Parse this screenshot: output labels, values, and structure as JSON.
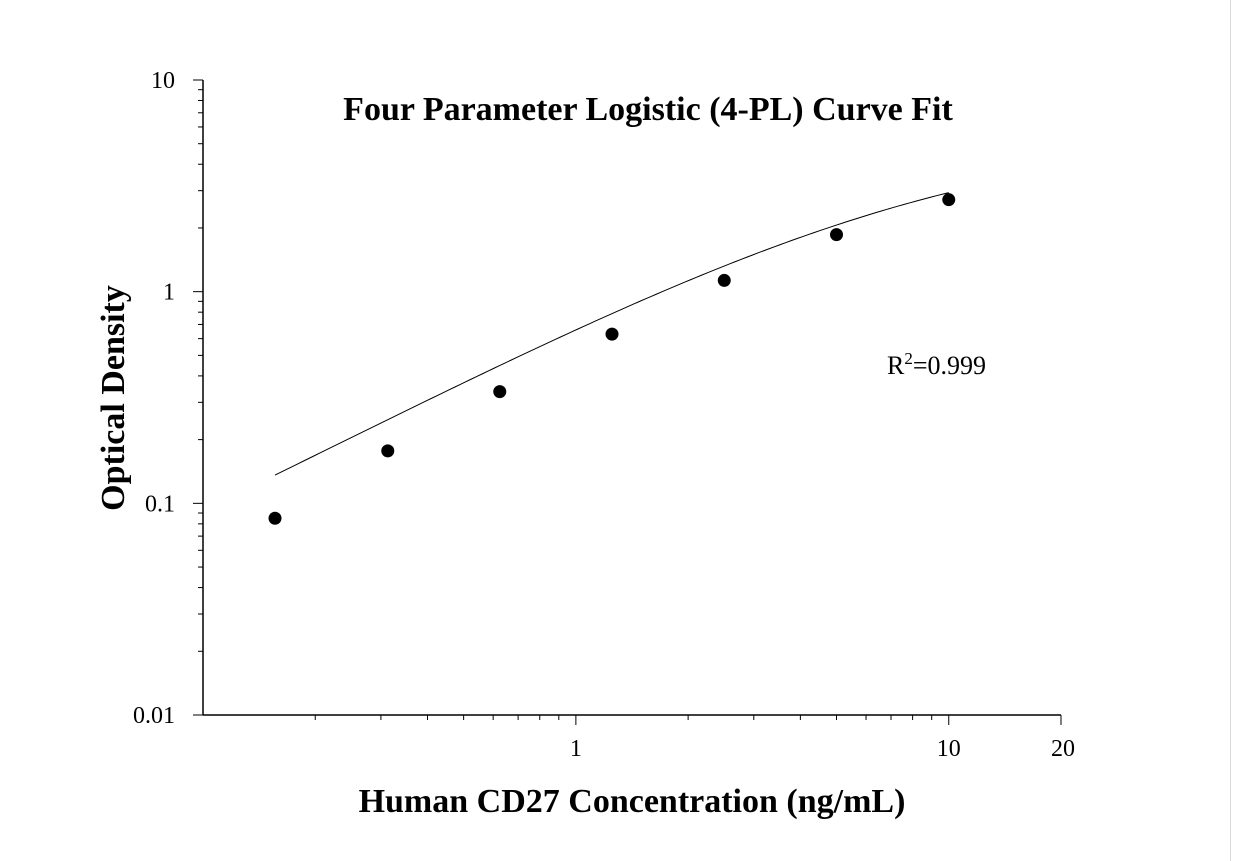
{
  "chart_data": {
    "type": "scatter",
    "title": "Four Parameter Logistic (4-PL) Curve Fit",
    "xlabel": "Human CD27 Concentration (ng/mL)",
    "ylabel": "Optical Density",
    "xscale": "log",
    "yscale": "log",
    "xlim": [
      0.1,
      20
    ],
    "ylim": [
      0.01,
      10
    ],
    "xticks": [
      {
        "value": 1,
        "label": "1"
      },
      {
        "value": 10,
        "label": "10"
      },
      {
        "value": 20,
        "label": "20"
      }
    ],
    "yticks": [
      {
        "value": 0.01,
        "label": "0.01"
      },
      {
        "value": 0.1,
        "label": "0.1"
      },
      {
        "value": 1,
        "label": "1"
      },
      {
        "value": 10,
        "label": "10"
      }
    ],
    "grid": false,
    "legend": "none",
    "points": {
      "x": [
        0.156,
        0.313,
        0.625,
        1.25,
        2.5,
        5,
        10
      ],
      "y": [
        0.085,
        0.177,
        0.337,
        0.63,
        1.13,
        1.86,
        2.72
      ]
    },
    "fit": {
      "model": "4-PL",
      "A": 0.005,
      "B": 0.92,
      "C": 9.0,
      "D": 5.6,
      "x_range": [
        0.156,
        10
      ]
    },
    "annotation": {
      "prefix": "R",
      "superscript": "2",
      "suffix": "=0.999"
    },
    "colors": {
      "points": "#000000",
      "curve": "#000000",
      "axes": "#000000"
    }
  }
}
